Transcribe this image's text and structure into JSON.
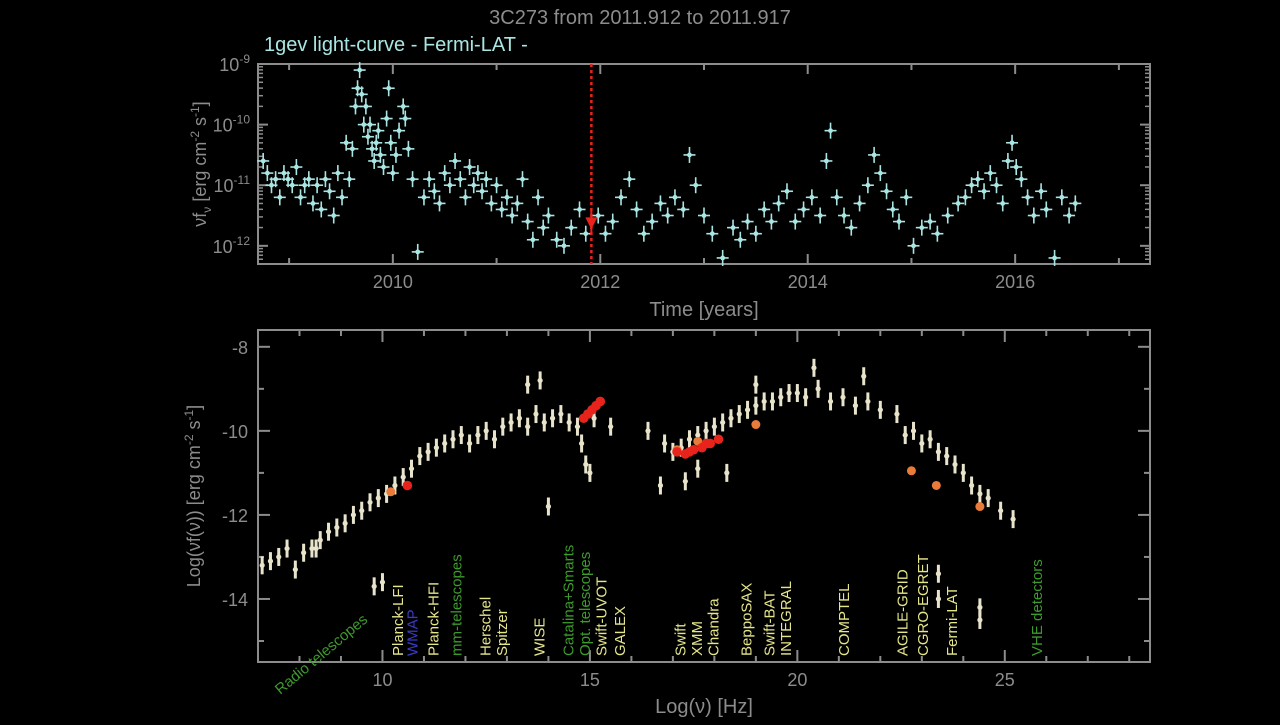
{
  "figure": {
    "title": "3C273 from 2011.912 to 2011.917",
    "colors": {
      "background": "#000000",
      "axis": "#8c8c8c",
      "lightcurve": "#a9e6e3",
      "sed": "#e8e4cc",
      "highlight": "#e8231c",
      "archival": "#e87a3a",
      "label_yellow": "#e5e58a",
      "label_green": "#3d9a2c",
      "current_time_line": "#e8231c"
    }
  },
  "chart_data": [
    {
      "type": "scatter",
      "title": "1gev light-curve - Fermi-LAT -",
      "xlabel": "Time [years]",
      "ylabel": "νf_ν [erg cm⁻² s⁻¹]",
      "xlim": [
        2008.7,
        2017.3
      ],
      "ylim": [
        -12.3,
        -9
      ],
      "log_y": true,
      "xticks": [
        2010,
        2012,
        2014,
        2016
      ],
      "xtick_labels": [
        "2010",
        "2012",
        "2014",
        "2016"
      ],
      "yticks": [
        {
          "exp": -9,
          "label_base": "10",
          "label_exp": "-9"
        },
        {
          "exp": -10,
          "label_base": "10",
          "label_exp": "-10"
        },
        {
          "exp": -11,
          "label_base": "10",
          "label_exp": "-11"
        },
        {
          "exp": -12,
          "label_base": "10",
          "label_exp": "-12"
        }
      ],
      "ylabel_parts": {
        "main": "νf",
        "sub": "ν",
        "unit": " [erg cm",
        "u1": "-2",
        "mid": " s",
        "u2": "-1",
        "end": "]"
      },
      "current_time": 2011.914,
      "current_flux_log": -11.63,
      "points": [
        [
          2008.75,
          -10.6
        ],
        [
          2008.79,
          -10.8
        ],
        [
          2008.83,
          -11.0
        ],
        [
          2008.87,
          -10.9
        ],
        [
          2008.91,
          -11.2
        ],
        [
          2008.95,
          -10.8
        ],
        [
          2008.99,
          -10.9
        ],
        [
          2009.03,
          -11.0
        ],
        [
          2009.07,
          -10.7
        ],
        [
          2009.11,
          -11.2
        ],
        [
          2009.15,
          -11.0
        ],
        [
          2009.19,
          -10.9
        ],
        [
          2009.23,
          -11.3
        ],
        [
          2009.27,
          -11.0
        ],
        [
          2009.31,
          -11.4
        ],
        [
          2009.35,
          -10.9
        ],
        [
          2009.39,
          -11.1
        ],
        [
          2009.43,
          -11.5
        ],
        [
          2009.47,
          -10.8
        ],
        [
          2009.51,
          -11.2
        ],
        [
          2009.55,
          -10.3
        ],
        [
          2009.58,
          -10.9
        ],
        [
          2009.61,
          -10.4
        ],
        [
          2009.64,
          -9.7
        ],
        [
          2009.66,
          -9.4
        ],
        [
          2009.68,
          -9.1
        ],
        [
          2009.7,
          -9.5
        ],
        [
          2009.72,
          -10.0
        ],
        [
          2009.74,
          -9.7
        ],
        [
          2009.76,
          -10.2
        ],
        [
          2009.78,
          -10.0
        ],
        [
          2009.8,
          -10.4
        ],
        [
          2009.82,
          -10.6
        ],
        [
          2009.84,
          -10.3
        ],
        [
          2009.86,
          -10.1
        ],
        [
          2009.88,
          -10.5
        ],
        [
          2009.91,
          -10.7
        ],
        [
          2009.94,
          -9.9
        ],
        [
          2009.96,
          -9.4
        ],
        [
          2009.98,
          -10.3
        ],
        [
          2010.0,
          -10.8
        ],
        [
          2010.03,
          -10.5
        ],
        [
          2010.06,
          -10.1
        ],
        [
          2010.1,
          -9.7
        ],
        [
          2010.12,
          -9.9
        ],
        [
          2010.15,
          -10.4
        ],
        [
          2010.19,
          -10.9
        ],
        [
          2010.24,
          -12.1
        ],
        [
          2010.3,
          -11.2
        ],
        [
          2010.35,
          -10.9
        ],
        [
          2010.4,
          -11.1
        ],
        [
          2010.45,
          -11.3
        ],
        [
          2010.5,
          -10.8
        ],
        [
          2010.55,
          -11.0
        ],
        [
          2010.6,
          -10.6
        ],
        [
          2010.65,
          -10.9
        ],
        [
          2010.7,
          -11.2
        ],
        [
          2010.74,
          -10.7
        ],
        [
          2010.78,
          -11.0
        ],
        [
          2010.82,
          -10.8
        ],
        [
          2010.86,
          -11.1
        ],
        [
          2010.9,
          -10.9
        ],
        [
          2010.95,
          -11.3
        ],
        [
          2011.0,
          -11.0
        ],
        [
          2011.05,
          -11.4
        ],
        [
          2011.1,
          -11.2
        ],
        [
          2011.15,
          -11.5
        ],
        [
          2011.2,
          -11.3
        ],
        [
          2011.25,
          -10.9
        ],
        [
          2011.3,
          -11.6
        ],
        [
          2011.35,
          -11.9
        ],
        [
          2011.4,
          -11.2
        ],
        [
          2011.45,
          -11.7
        ],
        [
          2011.5,
          -11.5
        ],
        [
          2011.58,
          -11.9
        ],
        [
          2011.65,
          -12.0
        ],
        [
          2011.72,
          -11.7
        ],
        [
          2011.8,
          -11.4
        ],
        [
          2011.86,
          -11.8
        ],
        [
          2011.98,
          -11.5
        ],
        [
          2012.05,
          -11.8
        ],
        [
          2012.12,
          -11.6
        ],
        [
          2012.2,
          -11.2
        ],
        [
          2012.28,
          -10.9
        ],
        [
          2012.35,
          -11.4
        ],
        [
          2012.42,
          -11.8
        ],
        [
          2012.5,
          -11.6
        ],
        [
          2012.58,
          -11.3
        ],
        [
          2012.65,
          -11.5
        ],
        [
          2012.72,
          -11.2
        ],
        [
          2012.8,
          -11.4
        ],
        [
          2012.86,
          -10.5
        ],
        [
          2012.92,
          -11.0
        ],
        [
          2013.0,
          -11.5
        ],
        [
          2013.08,
          -11.8
        ],
        [
          2013.18,
          -12.2
        ],
        [
          2013.28,
          -11.7
        ],
        [
          2013.35,
          -11.9
        ],
        [
          2013.42,
          -11.6
        ],
        [
          2013.5,
          -11.8
        ],
        [
          2013.58,
          -11.4
        ],
        [
          2013.65,
          -11.6
        ],
        [
          2013.72,
          -11.3
        ],
        [
          2013.8,
          -11.1
        ],
        [
          2013.88,
          -11.6
        ],
        [
          2013.96,
          -11.4
        ],
        [
          2014.04,
          -11.2
        ],
        [
          2014.12,
          -11.5
        ],
        [
          2014.18,
          -10.6
        ],
        [
          2014.22,
          -10.1
        ],
        [
          2014.28,
          -11.2
        ],
        [
          2014.35,
          -11.5
        ],
        [
          2014.42,
          -11.7
        ],
        [
          2014.5,
          -11.3
        ],
        [
          2014.58,
          -11.0
        ],
        [
          2014.64,
          -10.5
        ],
        [
          2014.7,
          -10.8
        ],
        [
          2014.76,
          -11.1
        ],
        [
          2014.82,
          -11.4
        ],
        [
          2014.88,
          -11.6
        ],
        [
          2014.95,
          -11.2
        ],
        [
          2015.02,
          -12.0
        ],
        [
          2015.1,
          -11.7
        ],
        [
          2015.18,
          -11.6
        ],
        [
          2015.25,
          -11.8
        ],
        [
          2015.35,
          -11.5
        ],
        [
          2015.45,
          -11.3
        ],
        [
          2015.52,
          -11.2
        ],
        [
          2015.58,
          -11.0
        ],
        [
          2015.64,
          -10.9
        ],
        [
          2015.7,
          -11.1
        ],
        [
          2015.76,
          -10.8
        ],
        [
          2015.82,
          -11.0
        ],
        [
          2015.88,
          -11.3
        ],
        [
          2015.93,
          -10.6
        ],
        [
          2015.97,
          -10.3
        ],
        [
          2016.01,
          -10.7
        ],
        [
          2016.06,
          -10.9
        ],
        [
          2016.12,
          -11.2
        ],
        [
          2016.18,
          -11.5
        ],
        [
          2016.25,
          -11.1
        ],
        [
          2016.3,
          -11.4
        ],
        [
          2016.38,
          -12.2
        ],
        [
          2016.45,
          -11.2
        ],
        [
          2016.52,
          -11.5
        ],
        [
          2016.58,
          -11.3
        ]
      ]
    },
    {
      "type": "scatter",
      "xlabel": "Log(ν) [Hz]",
      "ylabel": "Log(νf(ν)) [erg cm⁻² s⁻¹]",
      "ylabel_parts": {
        "main": "Log(νf(ν)) [erg cm",
        "u1": "-2",
        "mid": " s",
        "u2": "-1",
        "end": "]"
      },
      "xlim": [
        7,
        28.5
      ],
      "ylim": [
        -15.5,
        -7.6
      ],
      "xticks": [
        10,
        15,
        20,
        25
      ],
      "xtick_labels": [
        "10",
        "15",
        "20",
        "25"
      ],
      "yticks": [
        -8,
        -10,
        -12,
        -14
      ],
      "ytick_labels": [
        "-8",
        "-10",
        "-12",
        "-14"
      ],
      "sed_points": [
        [
          7.1,
          -13.2
        ],
        [
          7.3,
          -13.1
        ],
        [
          7.5,
          -13.0
        ],
        [
          7.7,
          -12.8
        ],
        [
          7.9,
          -13.3
        ],
        [
          8.1,
          -12.9
        ],
        [
          8.3,
          -12.8
        ],
        [
          8.5,
          -12.6
        ],
        [
          8.7,
          -12.4
        ],
        [
          8.9,
          -12.3
        ],
        [
          9.1,
          -12.2
        ],
        [
          9.3,
          -12.0
        ],
        [
          9.5,
          -11.9
        ],
        [
          9.7,
          -11.7
        ],
        [
          9.9,
          -11.6
        ],
        [
          10.1,
          -11.5
        ],
        [
          10.3,
          -11.3
        ],
        [
          10.5,
          -11.1
        ],
        [
          10.7,
          -10.9
        ],
        [
          10.9,
          -10.6
        ],
        [
          11.1,
          -10.5
        ],
        [
          11.3,
          -10.4
        ],
        [
          11.5,
          -10.3
        ],
        [
          11.7,
          -10.2
        ],
        [
          11.9,
          -10.1
        ],
        [
          12.1,
          -10.3
        ],
        [
          12.3,
          -10.1
        ],
        [
          12.5,
          -10.0
        ],
        [
          12.7,
          -10.2
        ],
        [
          12.9,
          -9.9
        ],
        [
          13.1,
          -9.8
        ],
        [
          13.3,
          -9.7
        ],
        [
          13.5,
          -9.9
        ],
        [
          13.7,
          -9.6
        ],
        [
          13.9,
          -9.8
        ],
        [
          14.1,
          -9.7
        ],
        [
          14.3,
          -9.6
        ],
        [
          14.5,
          -9.8
        ],
        [
          14.7,
          -9.9
        ],
        [
          15.1,
          -9.7
        ],
        [
          15.5,
          -9.9
        ],
        [
          16.4,
          -10.0
        ],
        [
          16.8,
          -10.3
        ],
        [
          17.0,
          -10.5
        ],
        [
          17.2,
          -10.4
        ],
        [
          17.4,
          -10.2
        ],
        [
          17.6,
          -10.1
        ],
        [
          17.8,
          -10.0
        ],
        [
          18.0,
          -9.9
        ],
        [
          18.2,
          -9.8
        ],
        [
          18.4,
          -9.7
        ],
        [
          18.6,
          -9.6
        ],
        [
          18.8,
          -9.5
        ],
        [
          19.0,
          -9.4
        ],
        [
          19.2,
          -9.3
        ],
        [
          19.4,
          -9.3
        ],
        [
          19.6,
          -9.2
        ],
        [
          19.8,
          -9.1
        ],
        [
          20.0,
          -9.1
        ],
        [
          20.2,
          -9.2
        ],
        [
          20.5,
          -9.0
        ],
        [
          20.8,
          -9.3
        ],
        [
          21.1,
          -9.2
        ],
        [
          21.4,
          -9.4
        ],
        [
          21.7,
          -9.3
        ],
        [
          22.0,
          -9.5
        ],
        [
          22.4,
          -9.6
        ],
        [
          22.6,
          -10.1
        ],
        [
          22.8,
          -10.0
        ],
        [
          23.0,
          -10.3
        ],
        [
          23.2,
          -10.2
        ],
        [
          23.4,
          -10.5
        ],
        [
          23.6,
          -10.6
        ],
        [
          23.8,
          -10.8
        ],
        [
          24.0,
          -11.0
        ],
        [
          24.2,
          -11.3
        ],
        [
          24.4,
          -11.5
        ],
        [
          24.6,
          -11.6
        ],
        [
          24.9,
          -11.9
        ],
        [
          25.2,
          -12.1
        ],
        [
          9.8,
          -13.7
        ],
        [
          10.0,
          -13.6
        ],
        [
          8.4,
          -12.8
        ],
        [
          14.8,
          -10.3
        ],
        [
          14.9,
          -10.8
        ],
        [
          15.0,
          -11.0
        ],
        [
          16.7,
          -11.3
        ],
        [
          17.3,
          -11.2
        ],
        [
          17.6,
          -10.9
        ],
        [
          18.3,
          -11.0
        ],
        [
          14.0,
          -11.8
        ],
        [
          13.5,
          -8.9
        ],
        [
          13.8,
          -8.8
        ],
        [
          23.4,
          -13.4
        ],
        [
          23.4,
          -14.0
        ],
        [
          24.4,
          -14.2
        ],
        [
          24.4,
          -14.5
        ],
        [
          21.6,
          -8.7
        ],
        [
          19.0,
          -8.9
        ],
        [
          20.4,
          -8.5
        ]
      ],
      "red_points": [
        [
          10.6,
          -11.3
        ],
        [
          14.85,
          -9.7
        ],
        [
          14.95,
          -9.6
        ],
        [
          15.05,
          -9.5
        ],
        [
          15.15,
          -9.4
        ],
        [
          15.25,
          -9.3
        ],
        [
          17.1,
          -10.5
        ],
        [
          17.3,
          -10.55
        ],
        [
          17.5,
          -10.45
        ],
        [
          17.7,
          -10.4
        ],
        [
          17.9,
          -10.3
        ],
        [
          18.1,
          -10.2
        ],
        [
          17.4,
          -10.5
        ],
        [
          17.8,
          -10.3
        ]
      ],
      "orange_points": [
        [
          10.2,
          -11.45
        ],
        [
          17.1,
          -10.45
        ],
        [
          17.6,
          -10.25
        ],
        [
          19.0,
          -9.85
        ],
        [
          22.75,
          -10.95
        ],
        [
          23.35,
          -11.3
        ],
        [
          24.4,
          -11.8
        ]
      ],
      "instrument_labels": [
        {
          "text": "Radio telescopes",
          "x": 8.6,
          "color": "#3d9a2c",
          "angle": -40
        },
        {
          "text": "Planck-LFI",
          "x": 10.5,
          "color": "#e5e58a",
          "angle": -90
        },
        {
          "text": "WMAP",
          "x": 10.85,
          "color": "#3a3ac8",
          "angle": -90
        },
        {
          "text": "Planck-HFI",
          "x": 11.35,
          "color": "#e5e58a",
          "angle": -90
        },
        {
          "text": "mm-telescopes",
          "x": 11.9,
          "color": "#3d9a2c",
          "angle": -90
        },
        {
          "text": "Herschel",
          "x": 12.6,
          "color": "#e5e58a",
          "angle": -90
        },
        {
          "text": "Spitzer",
          "x": 13.0,
          "color": "#e5e58a",
          "angle": -90
        },
        {
          "text": "WISE",
          "x": 13.9,
          "color": "#e5e58a",
          "angle": -90
        },
        {
          "text": "Catalina+Smarts",
          "x": 14.6,
          "color": "#3d9a2c",
          "angle": -90
        },
        {
          "text": "Opt. telescopes",
          "x": 15.0,
          "color": "#3d9a2c",
          "angle": -90
        },
        {
          "text": "Swift-UVOT",
          "x": 15.4,
          "color": "#e5e58a",
          "angle": -90
        },
        {
          "text": "GALEX",
          "x": 15.85,
          "color": "#e5e58a",
          "angle": -90
        },
        {
          "text": "Swift",
          "x": 17.3,
          "color": "#e5e58a",
          "angle": -90
        },
        {
          "text": "XMM",
          "x": 17.7,
          "color": "#e5e58a",
          "angle": -90
        },
        {
          "text": "Chandra",
          "x": 18.1,
          "color": "#e5e58a",
          "angle": -90
        },
        {
          "text": "BeppoSAX",
          "x": 18.9,
          "color": "#e5e58a",
          "angle": -90
        },
        {
          "text": "Swift-BAT",
          "x": 19.45,
          "color": "#e5e58a",
          "angle": -90
        },
        {
          "text": "INTEGRAL",
          "x": 19.85,
          "color": "#e5e58a",
          "angle": -90
        },
        {
          "text": "COMPTEL",
          "x": 21.25,
          "color": "#e5e58a",
          "angle": -90
        },
        {
          "text": "AGILE-GRID",
          "x": 22.65,
          "color": "#e5e58a",
          "angle": -90
        },
        {
          "text": "CGRO-EGRET",
          "x": 23.15,
          "color": "#e5e58a",
          "angle": -90
        },
        {
          "text": "Fermi-LAT",
          "x": 23.85,
          "color": "#e5e58a",
          "angle": -90
        },
        {
          "text": "VHE detectors",
          "x": 25.9,
          "color": "#3d9a2c",
          "angle": -90
        }
      ]
    }
  ]
}
